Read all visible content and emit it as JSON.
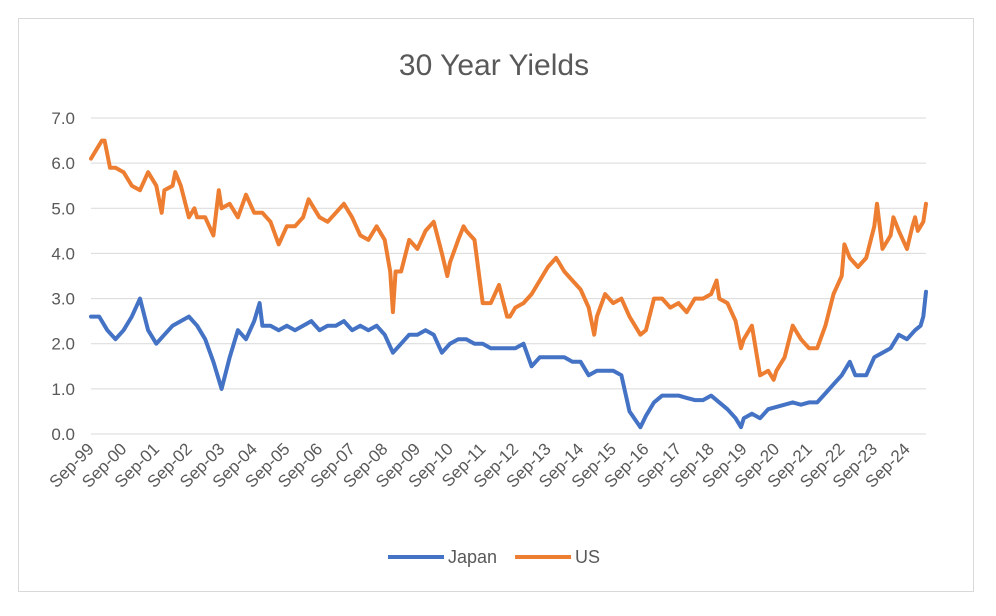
{
  "chart_data": {
    "type": "line",
    "title": "30 Year Yields",
    "xlabel": "",
    "ylabel": "",
    "ylim": [
      0,
      7
    ],
    "yticks": [
      "0.0",
      "1.0",
      "2.0",
      "3.0",
      "4.0",
      "5.0",
      "6.0",
      "7.0"
    ],
    "xticks": [
      "Sep-99",
      "Sep-00",
      "Sep-01",
      "Sep-02",
      "Sep-03",
      "Sep-04",
      "Sep-05",
      "Sep-06",
      "Sep-07",
      "Sep-08",
      "Sep-09",
      "Sep-10",
      "Sep-11",
      "Sep-12",
      "Sep-13",
      "Sep-14",
      "Sep-15",
      "Sep-16",
      "Sep-17",
      "Sep-18",
      "Sep-19",
      "Sep-20",
      "Sep-21",
      "Sep-22",
      "Sep-23",
      "Sep-24"
    ],
    "x_start": "Sep-99",
    "x_end": "Apr-25",
    "grid": true,
    "legend_position": "bottom",
    "series": [
      {
        "name": "Japan",
        "color": "#4472C4",
        "points": [
          [
            "Sep-99",
            2.6
          ],
          [
            "Dec-99",
            2.6
          ],
          [
            "Mar-00",
            2.3
          ],
          [
            "Jun-00",
            2.1
          ],
          [
            "Sep-00",
            2.3
          ],
          [
            "Dec-00",
            2.6
          ],
          [
            "Mar-01",
            3.0
          ],
          [
            "Jun-01",
            2.3
          ],
          [
            "Sep-01",
            2.0
          ],
          [
            "Dec-01",
            2.2
          ],
          [
            "Mar-02",
            2.4
          ],
          [
            "Jun-02",
            2.5
          ],
          [
            "Sep-02",
            2.6
          ],
          [
            "Dec-02",
            2.4
          ],
          [
            "Mar-03",
            2.1
          ],
          [
            "Jun-03",
            1.6
          ],
          [
            "Sep-03",
            1.0
          ],
          [
            "Dec-03",
            1.7
          ],
          [
            "Mar-04",
            2.3
          ],
          [
            "Jun-04",
            2.1
          ],
          [
            "Sep-04",
            2.5
          ],
          [
            "Nov-04",
            2.9
          ],
          [
            "Dec-04",
            2.4
          ],
          [
            "Mar-05",
            2.4
          ],
          [
            "Jun-05",
            2.3
          ],
          [
            "Sep-05",
            2.4
          ],
          [
            "Dec-05",
            2.3
          ],
          [
            "Mar-06",
            2.4
          ],
          [
            "Jun-06",
            2.5
          ],
          [
            "Sep-06",
            2.3
          ],
          [
            "Dec-06",
            2.4
          ],
          [
            "Mar-07",
            2.4
          ],
          [
            "Jun-07",
            2.5
          ],
          [
            "Sep-07",
            2.3
          ],
          [
            "Dec-07",
            2.4
          ],
          [
            "Mar-08",
            2.3
          ],
          [
            "Jun-08",
            2.4
          ],
          [
            "Sep-08",
            2.2
          ],
          [
            "Dec-08",
            1.8
          ],
          [
            "Mar-09",
            2.0
          ],
          [
            "Jun-09",
            2.2
          ],
          [
            "Sep-09",
            2.2
          ],
          [
            "Dec-09",
            2.3
          ],
          [
            "Mar-10",
            2.2
          ],
          [
            "Jun-10",
            1.8
          ],
          [
            "Sep-10",
            2.0
          ],
          [
            "Dec-10",
            2.1
          ],
          [
            "Mar-11",
            2.1
          ],
          [
            "Jun-11",
            2.0
          ],
          [
            "Sep-11",
            2.0
          ],
          [
            "Dec-11",
            1.9
          ],
          [
            "Mar-12",
            1.9
          ],
          [
            "Jun-12",
            1.9
          ],
          [
            "Sep-12",
            1.9
          ],
          [
            "Dec-12",
            2.0
          ],
          [
            "Mar-13",
            1.5
          ],
          [
            "Jun-13",
            1.7
          ],
          [
            "Sep-13",
            1.7
          ],
          [
            "Dec-13",
            1.7
          ],
          [
            "Mar-14",
            1.7
          ],
          [
            "Jun-14",
            1.6
          ],
          [
            "Sep-14",
            1.6
          ],
          [
            "Dec-14",
            1.3
          ],
          [
            "Mar-15",
            1.4
          ],
          [
            "Jun-15",
            1.4
          ],
          [
            "Sep-15",
            1.4
          ],
          [
            "Dec-15",
            1.3
          ],
          [
            "Mar-16",
            0.5
          ],
          [
            "Jul-16",
            0.15
          ],
          [
            "Sep-16",
            0.4
          ],
          [
            "Dec-16",
            0.7
          ],
          [
            "Mar-17",
            0.85
          ],
          [
            "Jun-17",
            0.85
          ],
          [
            "Sep-17",
            0.85
          ],
          [
            "Dec-17",
            0.8
          ],
          [
            "Mar-18",
            0.75
          ],
          [
            "Jun-18",
            0.75
          ],
          [
            "Sep-18",
            0.85
          ],
          [
            "Dec-18",
            0.7
          ],
          [
            "Mar-19",
            0.55
          ],
          [
            "Jun-19",
            0.35
          ],
          [
            "Aug-19",
            0.15
          ],
          [
            "Sep-19",
            0.35
          ],
          [
            "Dec-19",
            0.45
          ],
          [
            "Mar-20",
            0.35
          ],
          [
            "Jun-20",
            0.55
          ],
          [
            "Sep-20",
            0.6
          ],
          [
            "Dec-20",
            0.65
          ],
          [
            "Mar-21",
            0.7
          ],
          [
            "Jun-21",
            0.65
          ],
          [
            "Sep-21",
            0.7
          ],
          [
            "Dec-21",
            0.7
          ],
          [
            "Mar-22",
            0.9
          ],
          [
            "Jun-22",
            1.1
          ],
          [
            "Sep-22",
            1.3
          ],
          [
            "Dec-22",
            1.6
          ],
          [
            "Feb-23",
            1.3
          ],
          [
            "Mar-23",
            1.3
          ],
          [
            "Jun-23",
            1.3
          ],
          [
            "Sep-23",
            1.7
          ],
          [
            "Dec-23",
            1.8
          ],
          [
            "Mar-24",
            1.9
          ],
          [
            "Jun-24",
            2.2
          ],
          [
            "Sep-24",
            2.1
          ],
          [
            "Dec-24",
            2.3
          ],
          [
            "Feb-25",
            2.4
          ],
          [
            "Mar-25",
            2.6
          ],
          [
            "Apr-25",
            3.15
          ]
        ]
      },
      {
        "name": "US",
        "color": "#ED7D31",
        "points": [
          [
            "Sep-99",
            6.1
          ],
          [
            "Nov-99",
            6.3
          ],
          [
            "Jan-00",
            6.5
          ],
          [
            "Feb-00",
            6.5
          ],
          [
            "Apr-00",
            5.9
          ],
          [
            "Jun-00",
            5.9
          ],
          [
            "Sep-00",
            5.8
          ],
          [
            "Dec-00",
            5.5
          ],
          [
            "Mar-01",
            5.4
          ],
          [
            "Jun-01",
            5.8
          ],
          [
            "Sep-01",
            5.5
          ],
          [
            "Nov-01",
            4.9
          ],
          [
            "Dec-01",
            5.4
          ],
          [
            "Mar-02",
            5.5
          ],
          [
            "Apr-02",
            5.8
          ],
          [
            "Jun-02",
            5.5
          ],
          [
            "Sep-02",
            4.8
          ],
          [
            "Nov-02",
            5.0
          ],
          [
            "Dec-02",
            4.8
          ],
          [
            "Mar-03",
            4.8
          ],
          [
            "Jun-03",
            4.4
          ],
          [
            "Aug-03",
            5.4
          ],
          [
            "Sep-03",
            5.0
          ],
          [
            "Dec-03",
            5.1
          ],
          [
            "Mar-04",
            4.8
          ],
          [
            "Jun-04",
            5.3
          ],
          [
            "Sep-04",
            4.9
          ],
          [
            "Dec-04",
            4.9
          ],
          [
            "Mar-05",
            4.7
          ],
          [
            "Jun-05",
            4.2
          ],
          [
            "Sep-05",
            4.6
          ],
          [
            "Dec-05",
            4.6
          ],
          [
            "Mar-06",
            4.8
          ],
          [
            "May-06",
            5.2
          ],
          [
            "Jun-06",
            5.1
          ],
          [
            "Sep-06",
            4.8
          ],
          [
            "Dec-06",
            4.7
          ],
          [
            "Mar-07",
            4.9
          ],
          [
            "Jun-07",
            5.1
          ],
          [
            "Sep-07",
            4.8
          ],
          [
            "Dec-07",
            4.4
          ],
          [
            "Mar-08",
            4.3
          ],
          [
            "Jun-08",
            4.6
          ],
          [
            "Sep-08",
            4.3
          ],
          [
            "Nov-08",
            3.6
          ],
          [
            "Dec-08",
            2.7
          ],
          [
            "Jan-09",
            3.6
          ],
          [
            "Mar-09",
            3.6
          ],
          [
            "Jun-09",
            4.3
          ],
          [
            "Sep-09",
            4.1
          ],
          [
            "Dec-09",
            4.5
          ],
          [
            "Mar-10",
            4.7
          ],
          [
            "Jun-10",
            4.0
          ],
          [
            "Aug-10",
            3.5
          ],
          [
            "Sep-10",
            3.8
          ],
          [
            "Dec-10",
            4.3
          ],
          [
            "Feb-11",
            4.6
          ],
          [
            "Mar-11",
            4.5
          ],
          [
            "Jun-11",
            4.3
          ],
          [
            "Sep-11",
            2.9
          ],
          [
            "Dec-11",
            2.9
          ],
          [
            "Mar-12",
            3.3
          ],
          [
            "Jun-12",
            2.6
          ],
          [
            "Jul-12",
            2.6
          ],
          [
            "Sep-12",
            2.8
          ],
          [
            "Dec-12",
            2.9
          ],
          [
            "Mar-13",
            3.1
          ],
          [
            "Jun-13",
            3.4
          ],
          [
            "Sep-13",
            3.7
          ],
          [
            "Dec-13",
            3.9
          ],
          [
            "Mar-14",
            3.6
          ],
          [
            "Jun-14",
            3.4
          ],
          [
            "Sep-14",
            3.2
          ],
          [
            "Dec-14",
            2.8
          ],
          [
            "Feb-15",
            2.2
          ],
          [
            "Mar-15",
            2.6
          ],
          [
            "Jun-15",
            3.1
          ],
          [
            "Sep-15",
            2.9
          ],
          [
            "Dec-15",
            3.0
          ],
          [
            "Mar-16",
            2.6
          ],
          [
            "Jul-16",
            2.2
          ],
          [
            "Sep-16",
            2.3
          ],
          [
            "Dec-16",
            3.0
          ],
          [
            "Mar-17",
            3.0
          ],
          [
            "Jun-17",
            2.8
          ],
          [
            "Sep-17",
            2.9
          ],
          [
            "Dec-17",
            2.7
          ],
          [
            "Mar-18",
            3.0
          ],
          [
            "Jun-18",
            3.0
          ],
          [
            "Sep-18",
            3.1
          ],
          [
            "Nov-18",
            3.4
          ],
          [
            "Dec-18",
            3.0
          ],
          [
            "Mar-19",
            2.9
          ],
          [
            "Jun-19",
            2.5
          ],
          [
            "Aug-19",
            1.9
          ],
          [
            "Sep-19",
            2.1
          ],
          [
            "Dec-19",
            2.4
          ],
          [
            "Mar-20",
            1.3
          ],
          [
            "Jun-20",
            1.4
          ],
          [
            "Aug-20",
            1.2
          ],
          [
            "Sep-20",
            1.4
          ],
          [
            "Dec-20",
            1.7
          ],
          [
            "Mar-21",
            2.4
          ],
          [
            "Jun-21",
            2.1
          ],
          [
            "Sep-21",
            1.9
          ],
          [
            "Dec-21",
            1.9
          ],
          [
            "Mar-22",
            2.4
          ],
          [
            "Jun-22",
            3.1
          ],
          [
            "Sep-22",
            3.5
          ],
          [
            "Oct-22",
            4.2
          ],
          [
            "Dec-22",
            3.9
          ],
          [
            "Mar-23",
            3.7
          ],
          [
            "Jun-23",
            3.9
          ],
          [
            "Sep-23",
            4.6
          ],
          [
            "Oct-23",
            5.1
          ],
          [
            "Dec-23",
            4.1
          ],
          [
            "Mar-24",
            4.4
          ],
          [
            "Apr-24",
            4.8
          ],
          [
            "Jun-24",
            4.5
          ],
          [
            "Sep-24",
            4.1
          ],
          [
            "Nov-24",
            4.6
          ],
          [
            "Dec-24",
            4.8
          ],
          [
            "Jan-25",
            4.5
          ],
          [
            "Mar-25",
            4.7
          ],
          [
            "Apr-25",
            5.1
          ]
        ]
      }
    ]
  }
}
